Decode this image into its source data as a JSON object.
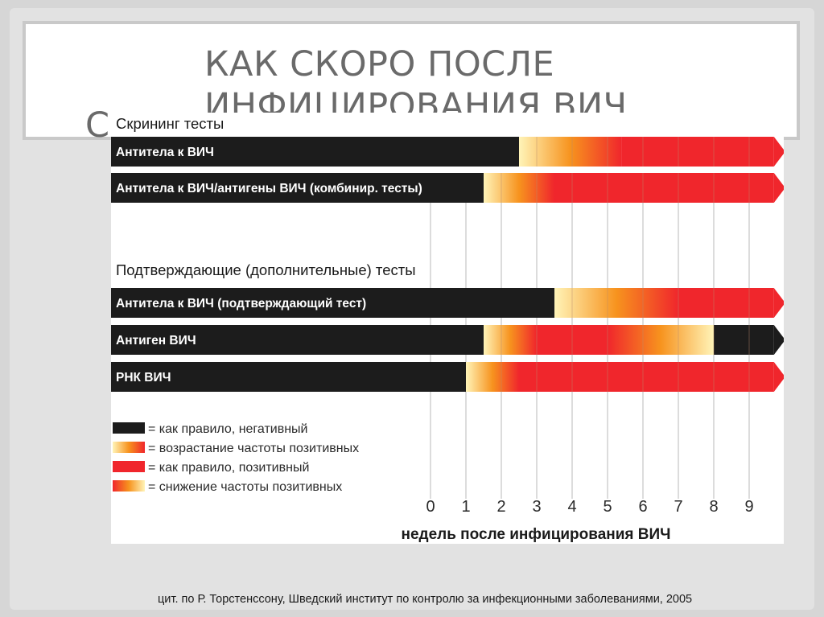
{
  "slide": {
    "title_line1": "КАК СКОРО ПОСЛЕ",
    "title_line2": "ИНФИЦИРОВАНИЯ ВИЧ",
    "title_overflow": "С",
    "citation": "цит. по Р. Торстенссону, Шведский институт по контролю за инфекционными заболеваниями, 2005"
  },
  "chart_data": {
    "type": "bar",
    "xlabel": "недель после инфицирования ВИЧ",
    "xticks": [
      0,
      1,
      2,
      3,
      4,
      5,
      6,
      7,
      8,
      9
    ],
    "xlim": [
      0,
      9.7
    ],
    "groups": [
      {
        "title": "Скрининг тесты",
        "rows": [
          {
            "label": "Антитела к ВИЧ",
            "negative_until": 2.5,
            "rising_until": 5.4,
            "positive_until": 9.7,
            "trailing_negative": false
          },
          {
            "label": "Антитела к ВИЧ/антигены ВИЧ (комбинир. тесты)",
            "negative_until": 1.5,
            "rising_until": 3.5,
            "positive_until": 9.7,
            "trailing_negative": false
          }
        ]
      },
      {
        "title": "Подтверждающие (дополнительные) тесты",
        "rows": [
          {
            "label": "Антитела к ВИЧ (подтверждающий тест)",
            "negative_until": 3.5,
            "rising_until": 7.0,
            "positive_until": 9.7,
            "trailing_negative": false
          },
          {
            "label": "Антиген ВИЧ",
            "negative_until": 1.5,
            "rising_until": 3.0,
            "positive_until": 5.0,
            "declining_until": 8.0,
            "trailing_negative": true
          },
          {
            "label": "РНК ВИЧ",
            "negative_until": 1.0,
            "rising_until": 2.5,
            "positive_until": 9.7,
            "trailing_negative": false
          }
        ]
      }
    ],
    "legend": [
      {
        "key": "negative",
        "label": "= как правило, негативный"
      },
      {
        "key": "rising",
        "label": "= возрастание частоты позитивных"
      },
      {
        "key": "positive",
        "label": "= как правило, позитивный"
      },
      {
        "key": "declining",
        "label": "= снижение частоты позитивных"
      }
    ],
    "colors": {
      "negative": "#1c1c1c",
      "positive": "#f0262c",
      "orange": "#f7931e",
      "pale": "#fff4b8"
    },
    "grid": true,
    "legend_position": "bottom-left"
  }
}
